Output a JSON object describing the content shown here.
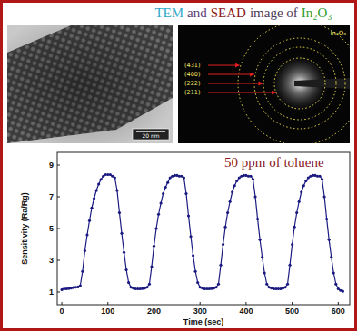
{
  "images": {
    "title": [
      {
        "text": "TEM",
        "color": "#2fa8c8"
      },
      {
        "text": "and",
        "color": "#5b3f7a"
      },
      {
        "text": "SEAD",
        "color": "#8b1a1a"
      },
      {
        "text": "image of",
        "color": "#4a3a5a"
      },
      {
        "text": "In₂O₃",
        "color": "#2e9e2e"
      }
    ],
    "tem_scale_bar": "20 nm",
    "saed_label": "In₂O₃",
    "saed_rings": [
      "(431)",
      "(400)",
      "(222)",
      "(211)"
    ]
  },
  "chart_data": {
    "type": "line",
    "annotations": [
      "50 ppm of toluene"
    ],
    "x_label": "Time (sec)",
    "y_label": "Sensitivity (Ra/Rg)",
    "x": [
      0,
      5,
      10,
      15,
      20,
      25,
      30,
      35,
      40,
      45,
      50,
      55,
      60,
      65,
      70,
      75,
      80,
      85,
      90,
      95,
      100,
      105,
      110,
      115,
      120,
      125,
      130,
      135,
      140,
      145,
      150,
      155,
      160,
      165,
      170,
      175,
      180,
      185,
      190,
      195,
      200,
      205,
      210,
      215,
      220,
      225,
      230,
      235,
      240,
      245,
      250,
      255,
      260,
      265,
      270,
      275,
      280,
      285,
      290,
      295,
      300,
      305,
      310,
      315,
      320,
      325,
      330,
      335,
      340,
      345,
      350,
      355,
      360,
      365,
      370,
      375,
      380,
      385,
      390,
      395,
      400,
      405,
      410,
      415,
      420,
      425,
      430,
      435,
      440,
      445,
      450,
      455,
      460,
      465,
      470,
      475,
      480,
      485,
      490,
      495,
      500,
      505,
      510,
      515,
      520,
      525,
      530,
      535,
      540,
      545,
      550,
      555,
      560,
      565,
      570,
      575,
      580,
      585,
      590,
      595,
      600,
      605,
      610
    ],
    "values": [
      1.15,
      1.2,
      1.2,
      1.22,
      1.25,
      1.28,
      1.3,
      1.32,
      1.4,
      2.3,
      3.6,
      4.6,
      5.5,
      6.3,
      6.9,
      7.4,
      7.8,
      8.1,
      8.3,
      8.4,
      8.4,
      8.4,
      8.3,
      8.2,
      7.4,
      6.0,
      4.7,
      3.5,
      2.4,
      1.6,
      1.3,
      1.25,
      1.2,
      1.2,
      1.2,
      1.22,
      1.25,
      1.3,
      1.5,
      2.6,
      3.9,
      5.0,
      5.9,
      6.6,
      7.2,
      7.6,
      7.9,
      8.2,
      8.3,
      8.35,
      8.35,
      8.3,
      8.3,
      8.2,
      7.2,
      5.8,
      4.5,
      3.3,
      2.3,
      1.6,
      1.3,
      1.25,
      1.2,
      1.2,
      1.2,
      1.22,
      1.25,
      1.3,
      1.5,
      2.7,
      4.0,
      5.1,
      6.0,
      6.7,
      7.3,
      7.7,
      8.0,
      8.2,
      8.3,
      8.35,
      8.35,
      8.3,
      8.3,
      8.1,
      7.0,
      5.6,
      4.3,
      3.2,
      2.2,
      1.5,
      1.3,
      1.25,
      1.2,
      1.2,
      1.2,
      1.2,
      1.25,
      1.3,
      1.5,
      2.7,
      4.0,
      5.1,
      6.0,
      6.7,
      7.3,
      7.7,
      8.0,
      8.2,
      8.3,
      8.35,
      8.35,
      8.3,
      8.3,
      8.1,
      7.0,
      5.6,
      4.3,
      3.2,
      2.2,
      1.5,
      1.2,
      1.1,
      1.05
    ],
    "color": "#1a1a80",
    "marker": "circle",
    "line_style": "solid",
    "xlim": [
      -10,
      625
    ],
    "ylim": [
      0.2,
      9.8
    ],
    "xticks": [
      0,
      100,
      200,
      300,
      400,
      500,
      600
    ],
    "yticks": [
      1,
      3,
      5,
      7,
      9
    ],
    "grid": false
  }
}
